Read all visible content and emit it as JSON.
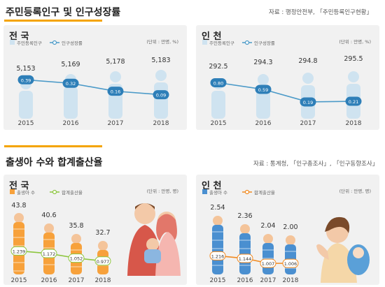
{
  "section1": {
    "title": "주민등록인구 및 인구성장률",
    "source": "자료 : 행정안전부, 「주민등록인구현황」"
  },
  "section2": {
    "title": "출생아 수와 합계출산율",
    "source": "자료 : 통계청, 「인구총조사」, 「인구동향조사」"
  },
  "colors": {
    "accent_orange": "#f4a400",
    "pop_bar": "#cfe3f0",
    "pop_line": "#4b9ac8",
    "pop_badge": "#2e7fb8",
    "birth_bar": "#f7a13b",
    "birth_line": "#8dc63f",
    "birth_bar2": "#4a8fd0",
    "birth_line2": "#f18a21"
  },
  "chart_data": [
    {
      "type": "bar",
      "title": "전 국",
      "legend": [
        "주민등록인구",
        "인구성장률"
      ],
      "unit_note": "(단위 : 만명, %)",
      "categories": [
        "2015",
        "2016",
        "2017",
        "2018"
      ],
      "series": [
        {
          "name": "주민등록인구",
          "values": [
            5153,
            5169,
            5178,
            5183
          ],
          "labels": [
            "5,153",
            "5,169",
            "5,178",
            "5,183"
          ]
        },
        {
          "name": "인구성장률",
          "values": [
            0.39,
            0.32,
            0.16,
            0.09
          ],
          "labels": [
            "0.39",
            "0.32",
            "0.16",
            "0.09"
          ]
        }
      ]
    },
    {
      "type": "bar",
      "title": "인 천",
      "legend": [
        "주민등록인구",
        "인구성장률"
      ],
      "unit_note": "(단위 : 만명, %)",
      "categories": [
        "2015",
        "2016",
        "2017",
        "2018"
      ],
      "series": [
        {
          "name": "주민등록인구",
          "values": [
            292.5,
            294.3,
            294.8,
            295.5
          ],
          "labels": [
            "292.5",
            "294.3",
            "294.8",
            "295.5"
          ]
        },
        {
          "name": "인구성장률",
          "values": [
            0.8,
            0.59,
            0.19,
            0.21
          ],
          "labels": [
            "0.80",
            "0.59",
            "0.19",
            "0.21"
          ]
        }
      ]
    },
    {
      "type": "bar",
      "title": "전 국",
      "legend": [
        "출생아 수",
        "합계출산율"
      ],
      "unit_note": "(단위 : 만명, 명)",
      "categories": [
        "2015",
        "2016",
        "2017",
        "2018"
      ],
      "series": [
        {
          "name": "출생아 수",
          "values": [
            43.8,
            40.6,
            35.8,
            32.7
          ],
          "labels": [
            "43.8",
            "40.6",
            "35.8",
            "32.7"
          ]
        },
        {
          "name": "합계출산율",
          "values": [
            1.239,
            1.172,
            1.052,
            0.977
          ],
          "labels": [
            "1.239",
            "1.172",
            "1.052",
            "0.977"
          ]
        }
      ]
    },
    {
      "type": "bar",
      "title": "인 천",
      "legend": [
        "출생아 수",
        "합계출산율"
      ],
      "unit_note": "(단위 : 만명, 명)",
      "categories": [
        "2015",
        "2016",
        "2017",
        "2018"
      ],
      "series": [
        {
          "name": "출생아 수",
          "values": [
            2.54,
            2.36,
            2.04,
            2.0
          ],
          "labels": [
            "2.54",
            "2.36",
            "2.04",
            "2.00"
          ]
        },
        {
          "name": "합계출산율",
          "values": [
            1.216,
            1.144,
            1.007,
            1.006
          ],
          "labels": [
            "1.216",
            "1.144",
            "1.007",
            "1.006"
          ]
        }
      ]
    }
  ]
}
